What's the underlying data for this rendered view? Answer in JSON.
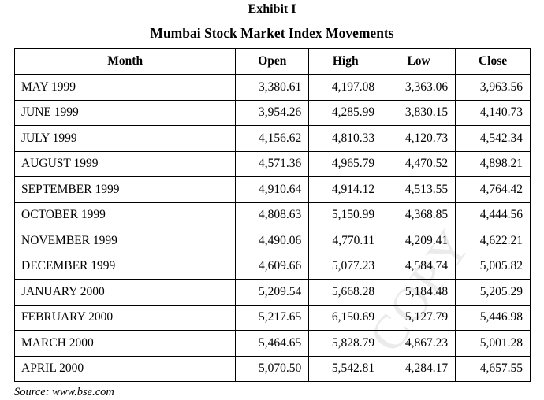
{
  "document": {
    "exhibit_label": "Exhibit I",
    "title": "Mumbai Stock Market Index Movements",
    "source": "Source: www.bse.com",
    "watermark": "COPY"
  },
  "table": {
    "headers": {
      "month": "Month",
      "open": "Open",
      "high": "High",
      "low": "Low",
      "close": "Close"
    },
    "rows": [
      {
        "month": "MAY 1999",
        "open": "3,380.61",
        "high": "4,197.08",
        "low": "3,363.06",
        "close": "3,963.56"
      },
      {
        "month": "JUNE 1999",
        "open": "3,954.26",
        "high": "4,285.99",
        "low": "3,830.15",
        "close": "4,140.73"
      },
      {
        "month": "JULY 1999",
        "open": "4,156.62",
        "high": "4,810.33",
        "low": "4,120.73",
        "close": "4,542.34"
      },
      {
        "month": "AUGUST 1999",
        "open": "4,571.36",
        "high": "4,965.79",
        "low": "4,470.52",
        "close": "4,898.21"
      },
      {
        "month": "SEPTEMBER 1999",
        "open": "4,910.64",
        "high": "4,914.12",
        "low": "4,513.55",
        "close": "4,764.42"
      },
      {
        "month": "OCTOBER 1999",
        "open": "4,808.63",
        "high": "5,150.99",
        "low": "4,368.85",
        "close": "4,444.56"
      },
      {
        "month": "NOVEMBER 1999",
        "open": "4,490.06",
        "high": "4,770.11",
        "low": "4,209.41",
        "close": "4,622.21"
      },
      {
        "month": "DECEMBER 1999",
        "open": "4,609.66",
        "high": "5,077.23",
        "low": "4,584.74",
        "close": "5,005.82"
      },
      {
        "month": "JANUARY 2000",
        "open": "5,209.54",
        "high": "5,668.28",
        "low": "5,184.48",
        "close": "5,205.29"
      },
      {
        "month": "FEBRUARY 2000",
        "open": "5,217.65",
        "high": "6,150.69",
        "low": "5,127.79",
        "close": "5,446.98"
      },
      {
        "month": "MARCH 2000",
        "open": "5,464.65",
        "high": "5,828.79",
        "low": "4,867.23",
        "close": "5,001.28"
      },
      {
        "month": "APRIL 2000",
        "open": "5,070.50",
        "high": "5,542.81",
        "low": "4,284.17",
        "close": "4,657.55"
      }
    ]
  }
}
